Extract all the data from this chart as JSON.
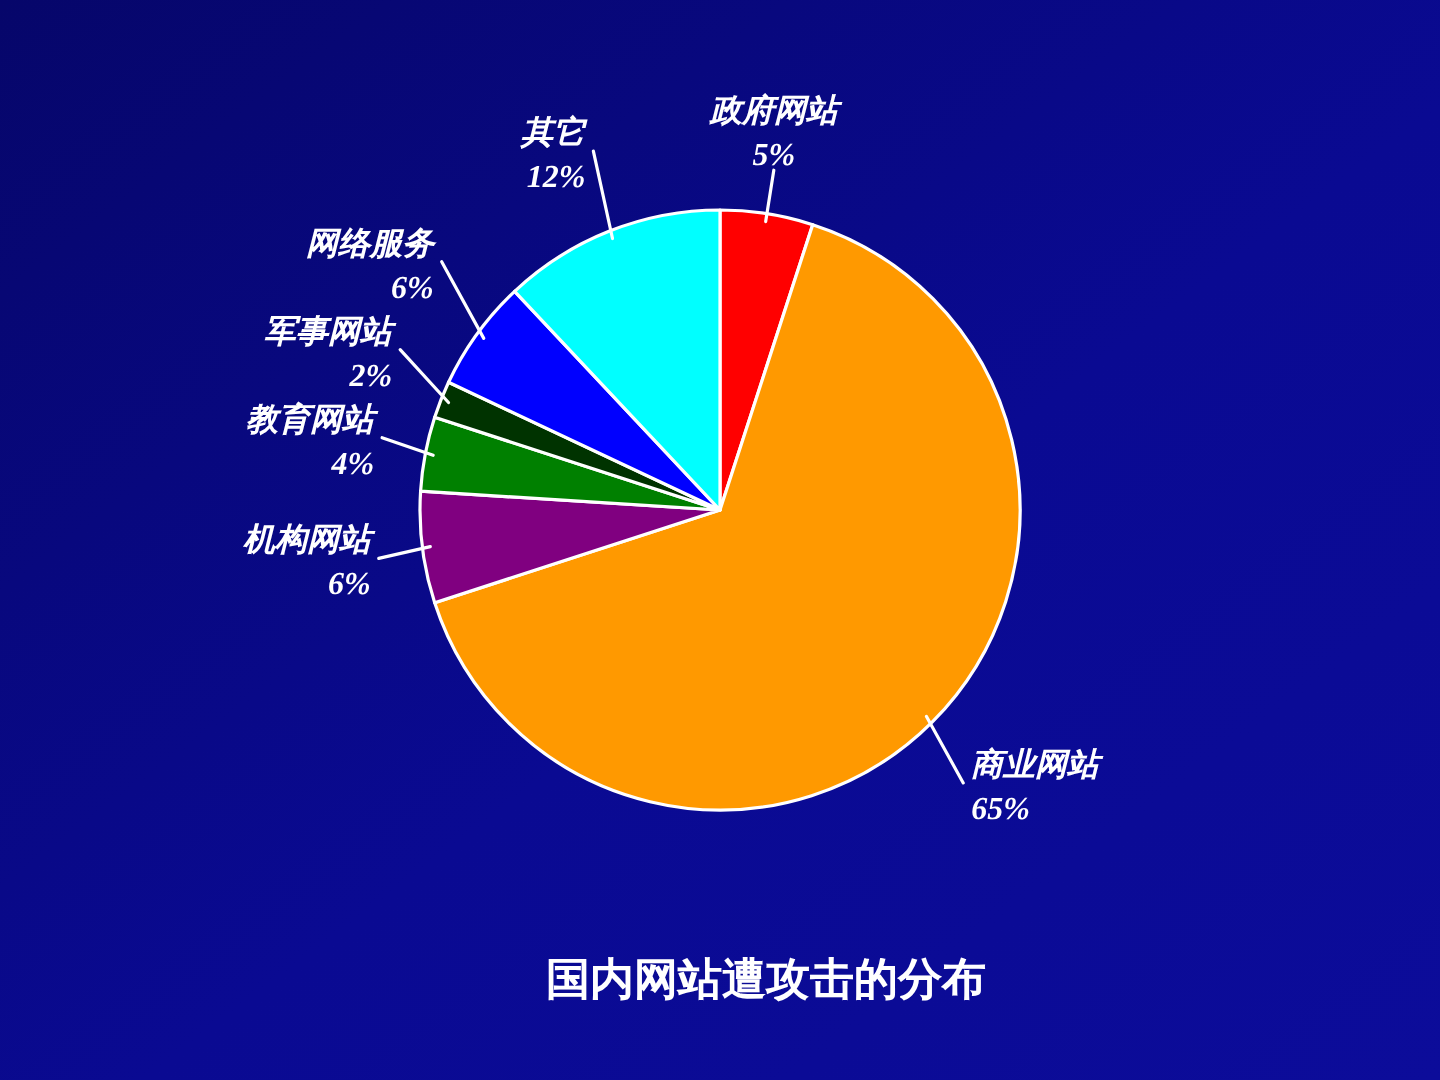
{
  "chart_data": {
    "type": "pie",
    "title": "国内网站遭攻击的分布",
    "categories": [
      "政府网站",
      "商业网站",
      "机构网站",
      "教育网站",
      "军事网站",
      "网络服务",
      "其它"
    ],
    "values": [
      5,
      65,
      6,
      4,
      2,
      6,
      12
    ],
    "colors": [
      "#ff0000",
      "#ff9900",
      "#800080",
      "#008000",
      "#003300",
      "#0000ff",
      "#00ffff"
    ],
    "value_labels": [
      "5%",
      "65%",
      "6%",
      "4%",
      "2%",
      "6%",
      "12%"
    ]
  }
}
